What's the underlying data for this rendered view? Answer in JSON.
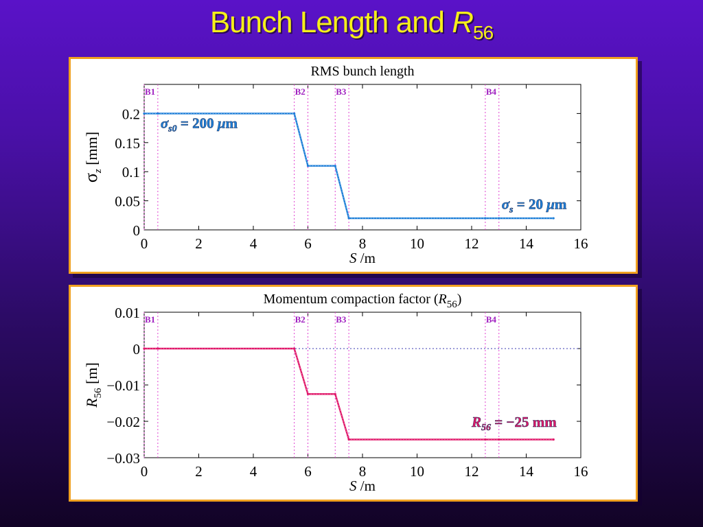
{
  "slide": {
    "title_main": "Bunch Length and ",
    "title_symbol": "R",
    "title_sub": "56"
  },
  "colors": {
    "title": "#f5ef1a",
    "panel_border": "#f0a020",
    "series_top": "#1e7fd8",
    "series_bottom": "#e0186a",
    "marker_line": "#e040d0",
    "marker_label": "#a020c0"
  },
  "chart_data": [
    {
      "type": "line",
      "title": "RMS bunch length",
      "xlabel_italic": "S",
      "xlabel_rest": " /m",
      "ylabel_symbol": "σ",
      "ylabel_sub": "z",
      "ylabel_unit": "[mm]",
      "xlim": [
        0,
        16
      ],
      "ylim": [
        0,
        0.25
      ],
      "xticks": [
        "0",
        "2",
        "4",
        "6",
        "8",
        "10",
        "12",
        "14",
        "16"
      ],
      "xtick_values": [
        0,
        2,
        4,
        6,
        8,
        10,
        12,
        14,
        16
      ],
      "yticks": [
        "0",
        "0.05",
        "0.1",
        "0.15",
        "0.2"
      ],
      "ytick_values": [
        0,
        0.05,
        0.1,
        0.15,
        0.2
      ],
      "markers": [
        {
          "label": "B1",
          "x": [
            0,
            0.5
          ]
        },
        {
          "label": "B2",
          "x": [
            5.5,
            6.0
          ]
        },
        {
          "label": "B3",
          "x": [
            7.0,
            7.5
          ]
        },
        {
          "label": "B4",
          "x": [
            12.5,
            13.0
          ]
        }
      ],
      "series": [
        {
          "x": [
            0,
            0.5,
            5.5,
            6.0,
            7.0,
            7.5,
            12.5,
            13.0,
            15
          ],
          "y": [
            0.2,
            0.2,
            0.2,
            0.11,
            0.11,
            0.02,
            0.02,
            0.02,
            0.02
          ]
        }
      ],
      "annotations": [
        {
          "symbol": "σ",
          "sub": "s0",
          "text": " = 200 ",
          "unit_symbol": "μ",
          "unit": "m",
          "x": 0.6,
          "y": 0.175
        },
        {
          "symbol": "σ",
          "sub": "s",
          "text": " = 20 ",
          "unit_symbol": "μ",
          "unit": "m",
          "x": 13.1,
          "y": 0.036
        }
      ],
      "grid": false
    },
    {
      "type": "line",
      "title_prefix": "Momentum compaction factor (",
      "title_symbol": "R",
      "title_sub": "56",
      "title_suffix": ")",
      "xlabel_italic": "S",
      "xlabel_rest": " /m",
      "ylabel_symbol": "R",
      "ylabel_sub": "56",
      "ylabel_unit": "[m]",
      "xlim": [
        0,
        16
      ],
      "ylim": [
        -0.03,
        0.01
      ],
      "xticks": [
        "0",
        "2",
        "4",
        "6",
        "8",
        "10",
        "12",
        "14",
        "16"
      ],
      "xtick_values": [
        0,
        2,
        4,
        6,
        8,
        10,
        12,
        14,
        16
      ],
      "yticks": [
        "−0.03",
        "−0.02",
        "−0.01",
        "0",
        "0.01"
      ],
      "ytick_values": [
        -0.03,
        -0.02,
        -0.01,
        0,
        0.01
      ],
      "markers": [
        {
          "label": "B1",
          "x": [
            0,
            0.5
          ]
        },
        {
          "label": "B2",
          "x": [
            5.5,
            6.0
          ]
        },
        {
          "label": "B3",
          "x": [
            7.0,
            7.5
          ]
        },
        {
          "label": "B4",
          "x": [
            12.5,
            13.0
          ]
        }
      ],
      "series": [
        {
          "x": [
            0,
            0.5,
            5.5,
            6.0,
            7.0,
            7.5,
            12.5,
            13.0,
            15
          ],
          "y": [
            0,
            0,
            0,
            -0.0125,
            -0.0125,
            -0.025,
            -0.025,
            -0.025,
            -0.025
          ]
        }
      ],
      "zero_line": true,
      "annotations": [
        {
          "symbol": "R",
          "sub": "56",
          "text": " = −25 mm",
          "x": 12.0,
          "y": -0.0215
        }
      ],
      "grid": false
    }
  ]
}
